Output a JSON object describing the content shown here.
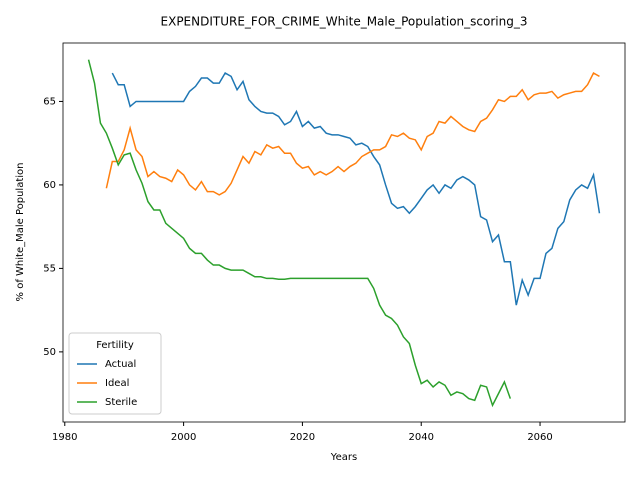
{
  "chart_data": {
    "type": "line",
    "title": "EXPENDITURE_FOR_CRIME_White_Male_Population_scoring_3",
    "x_label": "Years",
    "y_label": "% of White_Male Population",
    "legend_title": "Fertility",
    "legend_loc": "lower left",
    "x": [
      1984,
      1985,
      1986,
      1987,
      1988,
      1989,
      1990,
      1991,
      1992,
      1993,
      1994,
      1995,
      1996,
      1997,
      1998,
      1999,
      2000,
      2001,
      2002,
      2003,
      2004,
      2005,
      2006,
      2007,
      2008,
      2009,
      2010,
      2011,
      2012,
      2013,
      2014,
      2015,
      2016,
      2017,
      2018,
      2019,
      2020,
      2021,
      2022,
      2023,
      2024,
      2025,
      2026,
      2027,
      2028,
      2029,
      2030,
      2031,
      2032,
      2033,
      2034,
      2035,
      2036,
      2037,
      2038,
      2039,
      2040,
      2041,
      2042,
      2043,
      2044,
      2045,
      2046,
      2047,
      2048,
      2049,
      2050,
      2051,
      2052,
      2053,
      2054,
      2055,
      2056,
      2057,
      2058,
      2059,
      2060,
      2061,
      2062,
      2063,
      2064,
      2065,
      2066,
      2067,
      2068,
      2069,
      2070
    ],
    "series": [
      {
        "name": "Actual",
        "color": "#1f77b4",
        "values": [
          null,
          null,
          null,
          null,
          66.7,
          66.0,
          66.0,
          64.7,
          65.0,
          65.0,
          65.0,
          65.0,
          65.0,
          65.0,
          65.0,
          65.0,
          65.0,
          65.6,
          65.9,
          66.4,
          66.4,
          66.1,
          66.1,
          66.7,
          66.5,
          65.7,
          66.2,
          65.1,
          64.7,
          64.4,
          64.3,
          64.3,
          64.1,
          63.6,
          63.8,
          64.4,
          63.5,
          63.8,
          63.4,
          63.5,
          63.1,
          63.0,
          63.0,
          62.9,
          62.8,
          62.4,
          62.5,
          62.3,
          61.7,
          61.2,
          60.0,
          58.9,
          58.6,
          58.7,
          58.3,
          58.7,
          59.2,
          59.7,
          60.0,
          59.5,
          60.0,
          59.8,
          60.3,
          60.5,
          60.3,
          60.0,
          58.1,
          57.9,
          56.6,
          57.0,
          55.4,
          55.4,
          52.8,
          54.3,
          53.4,
          54.4,
          54.4,
          55.9,
          56.2,
          57.4,
          57.8,
          59.1,
          59.7,
          60.0,
          59.8,
          60.6,
          58.3
        ]
      },
      {
        "name": "Ideal",
        "color": "#ff7f0e",
        "values": [
          null,
          null,
          null,
          59.8,
          61.4,
          61.4,
          62.1,
          63.4,
          62.1,
          61.7,
          60.5,
          60.8,
          60.5,
          60.4,
          60.2,
          60.9,
          60.6,
          60.0,
          59.7,
          60.2,
          59.6,
          59.6,
          59.4,
          59.6,
          60.1,
          60.9,
          61.7,
          61.3,
          62.0,
          61.8,
          62.4,
          62.2,
          62.3,
          61.9,
          61.9,
          61.3,
          61.0,
          61.1,
          60.6,
          60.8,
          60.6,
          60.8,
          61.1,
          60.8,
          61.1,
          61.3,
          61.7,
          61.9,
          62.1,
          62.1,
          62.3,
          63.0,
          62.9,
          63.1,
          62.8,
          62.7,
          62.1,
          62.9,
          63.1,
          63.8,
          63.7,
          64.1,
          63.8,
          63.5,
          63.3,
          63.2,
          63.8,
          64.0,
          64.5,
          65.1,
          65.0,
          65.3,
          65.3,
          65.7,
          65.1,
          65.4,
          65.5,
          65.5,
          65.6,
          65.2,
          65.4,
          65.5,
          65.6,
          65.6,
          66.0,
          66.7,
          66.5
        ]
      },
      {
        "name": "Sterile",
        "color": "#2ca02c",
        "values": [
          67.5,
          66.1,
          63.7,
          63.1,
          62.2,
          61.2,
          61.8,
          61.9,
          60.9,
          60.1,
          59.0,
          58.5,
          58.5,
          57.7,
          57.4,
          57.1,
          56.8,
          56.2,
          55.9,
          55.9,
          55.5,
          55.2,
          55.2,
          55.0,
          54.9,
          54.9,
          54.9,
          54.7,
          54.5,
          54.5,
          54.4,
          54.4,
          54.35,
          54.35,
          54.4,
          54.4,
          54.4,
          54.4,
          54.4,
          54.4,
          54.4,
          54.4,
          54.4,
          54.4,
          54.4,
          54.4,
          54.4,
          54.4,
          53.8,
          52.8,
          52.2,
          52.0,
          51.6,
          50.9,
          50.5,
          49.2,
          48.1,
          48.3,
          47.9,
          48.2,
          48.0,
          47.4,
          47.6,
          47.5,
          47.2,
          47.1,
          48.0,
          47.9,
          46.8,
          47.5,
          48.2,
          47.2,
          null,
          null,
          null,
          null,
          null,
          null,
          null,
          null,
          null,
          null,
          null,
          null,
          null,
          null,
          null
        ]
      }
    ],
    "xlim": [
      1979.7,
      2074.3
    ],
    "xticks": [
      1980,
      2000,
      2020,
      2040,
      2060
    ],
    "ylim": [
      45.8,
      68.5
    ],
    "yticks": [
      50,
      55,
      60,
      65
    ],
    "grid": false
  }
}
